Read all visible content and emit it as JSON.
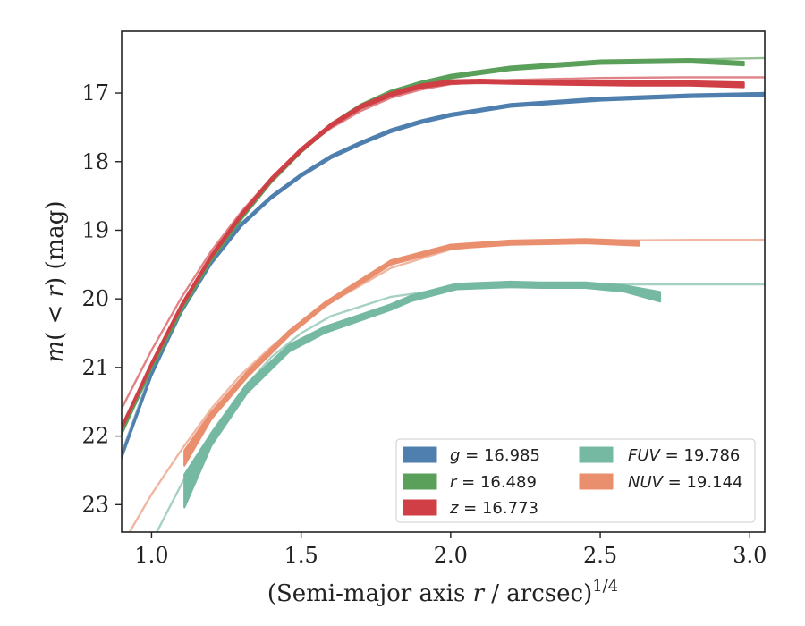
{
  "chart_data": {
    "type": "line",
    "xlabel": "(Semi-major axis r / arcsec)1/4",
    "xlabel_parts": {
      "pre": "(Semi-major axis ",
      "var": "r",
      "post": " / arcsec)",
      "sup": "1/4"
    },
    "ylabel": "m( < r) (mag)",
    "ylabel_parts": {
      "var": "m",
      "mid": "( < ",
      "var2": "r",
      "post": ") (mag)"
    },
    "xlim": [
      0.9,
      3.05
    ],
    "ylim": [
      23.4,
      16.1
    ],
    "y_inverted": true,
    "xticks": [
      1.0,
      1.5,
      2.0,
      2.5,
      3.0
    ],
    "xtick_labels": [
      "1.0",
      "1.5",
      "2.0",
      "2.5",
      "3.0"
    ],
    "yticks": [
      17,
      18,
      19,
      20,
      21,
      22,
      23
    ],
    "ytick_labels": [
      "17",
      "18",
      "19",
      "20",
      "21",
      "22",
      "23"
    ],
    "grid": false,
    "legend_location": "lower right",
    "series": [
      {
        "name": "g = 16.985",
        "label_var": "g",
        "label_val": "16.985",
        "color": "#4e7fae",
        "model": {
          "x": [
            0.9,
            1.0,
            1.1,
            1.2,
            1.3,
            1.4,
            1.5,
            1.6,
            1.7,
            1.8,
            1.9,
            2.0,
            2.2,
            2.5,
            2.8,
            3.05
          ],
          "y": [
            22.25,
            21.05,
            20.15,
            19.45,
            18.9,
            18.5,
            18.18,
            17.92,
            17.72,
            17.54,
            17.41,
            17.31,
            17.17,
            17.08,
            17.03,
            17.0
          ]
        },
        "data": {
          "x": [
            0.9,
            1.0,
            1.1,
            1.2,
            1.3,
            1.4,
            1.5,
            1.6,
            1.7,
            1.8,
            1.9,
            2.0,
            2.2,
            2.5,
            2.8,
            3.05
          ],
          "y": [
            22.3,
            21.1,
            20.18,
            19.47,
            18.92,
            18.52,
            18.2,
            17.93,
            17.73,
            17.55,
            17.42,
            17.32,
            17.18,
            17.09,
            17.04,
            17.02
          ],
          "thickness": [
            0.04,
            0.04,
            0.04,
            0.04,
            0.04,
            0.04,
            0.04,
            0.04,
            0.04,
            0.04,
            0.04,
            0.04,
            0.04,
            0.04,
            0.04,
            0.04
          ]
        }
      },
      {
        "name": "r = 16.489",
        "label_var": "r",
        "label_val": "16.489",
        "color": "#5aa05a",
        "model": {
          "x": [
            0.9,
            1.0,
            1.1,
            1.2,
            1.3,
            1.4,
            1.5,
            1.6,
            1.7,
            1.8,
            1.9,
            2.0,
            2.2,
            2.5,
            2.8,
            3.05
          ],
          "y": [
            21.85,
            20.95,
            20.1,
            19.4,
            18.8,
            18.27,
            17.83,
            17.47,
            17.19,
            16.99,
            16.85,
            16.75,
            16.63,
            16.54,
            16.51,
            16.49
          ]
        },
        "data": {
          "x": [
            0.9,
            1.0,
            1.1,
            1.2,
            1.3,
            1.4,
            1.5,
            1.6,
            1.7,
            1.8,
            1.9,
            2.0,
            2.2,
            2.5,
            2.8,
            2.98
          ],
          "y": [
            21.95,
            21.0,
            20.15,
            19.42,
            18.82,
            18.28,
            17.84,
            17.47,
            17.19,
            16.99,
            16.86,
            16.76,
            16.64,
            16.55,
            16.53,
            16.57
          ],
          "thickness": [
            0.05,
            0.05,
            0.05,
            0.05,
            0.05,
            0.05,
            0.05,
            0.05,
            0.05,
            0.05,
            0.05,
            0.05,
            0.05,
            0.05,
            0.05,
            0.05
          ]
        }
      },
      {
        "name": "z = 16.773",
        "label_var": "z",
        "label_val": "16.773",
        "color": "#cf3f45",
        "model": {
          "x": [
            0.9,
            1.0,
            1.1,
            1.2,
            1.3,
            1.4,
            1.5,
            1.6,
            1.7,
            1.8,
            1.9,
            2.0,
            2.2,
            2.5,
            2.8,
            3.05
          ],
          "y": [
            21.6,
            20.75,
            19.98,
            19.3,
            18.73,
            18.24,
            17.83,
            17.51,
            17.26,
            17.07,
            16.95,
            16.87,
            16.81,
            16.78,
            16.77,
            16.77
          ]
        },
        "data": {
          "x": [
            0.9,
            1.0,
            1.1,
            1.2,
            1.3,
            1.4,
            1.5,
            1.6,
            1.7,
            1.8,
            1.9,
            2.0,
            2.1,
            2.2,
            2.4,
            2.6,
            2.8,
            2.98
          ],
          "y": [
            21.88,
            20.95,
            20.1,
            19.38,
            18.78,
            18.26,
            17.83,
            17.47,
            17.2,
            17.02,
            16.9,
            16.84,
            16.83,
            16.84,
            16.85,
            16.86,
            16.86,
            16.88
          ],
          "thickness": [
            0.05,
            0.05,
            0.05,
            0.05,
            0.05,
            0.05,
            0.05,
            0.05,
            0.05,
            0.05,
            0.05,
            0.05,
            0.05,
            0.05,
            0.06,
            0.06,
            0.06,
            0.07
          ]
        }
      },
      {
        "name": "FUV = 19.786",
        "label_var": "FUV",
        "label_val": "19.786",
        "color": "#76b9a3",
        "model": {
          "x": [
            0.9,
            1.0,
            1.1,
            1.2,
            1.3,
            1.4,
            1.5,
            1.6,
            1.8,
            2.0,
            2.2,
            2.5,
            2.8,
            3.05
          ],
          "y": [
            24.8,
            23.55,
            22.7,
            21.95,
            21.35,
            20.85,
            20.5,
            20.25,
            19.97,
            19.85,
            19.81,
            19.79,
            19.79,
            19.79
          ]
        },
        "data": {
          "x": [
            1.11,
            1.2,
            1.32,
            1.46,
            1.58,
            1.8,
            1.87,
            2.02,
            2.2,
            2.3,
            2.45,
            2.58,
            2.7
          ],
          "y": [
            22.8,
            22.05,
            21.3,
            20.72,
            20.45,
            20.12,
            19.99,
            19.82,
            19.79,
            19.8,
            19.8,
            19.85,
            19.97
          ],
          "thickness": [
            0.48,
            0.18,
            0.14,
            0.1,
            0.09,
            0.08,
            0.08,
            0.08,
            0.08,
            0.08,
            0.08,
            0.09,
            0.14
          ]
        }
      },
      {
        "name": "NUV = 19.144",
        "label_var": "NUV",
        "label_val": "19.144",
        "color": "#e98f6e",
        "model": {
          "x": [
            0.9,
            1.0,
            1.1,
            1.2,
            1.3,
            1.4,
            1.5,
            1.6,
            1.8,
            2.0,
            2.2,
            2.5,
            2.8,
            3.05
          ],
          "y": [
            23.6,
            22.85,
            22.2,
            21.6,
            21.1,
            20.7,
            20.35,
            20.05,
            19.55,
            19.28,
            19.18,
            19.15,
            19.14,
            19.14
          ]
        },
        "data": {
          "x": [
            1.11,
            1.2,
            1.32,
            1.46,
            1.58,
            1.8,
            2.0,
            2.2,
            2.45,
            2.63
          ],
          "y": [
            22.32,
            21.7,
            21.1,
            20.5,
            20.08,
            19.47,
            19.24,
            19.18,
            19.16,
            19.19
          ],
          "thickness": [
            0.22,
            0.1,
            0.08,
            0.07,
            0.06,
            0.06,
            0.06,
            0.06,
            0.06,
            0.07
          ]
        }
      }
    ]
  }
}
